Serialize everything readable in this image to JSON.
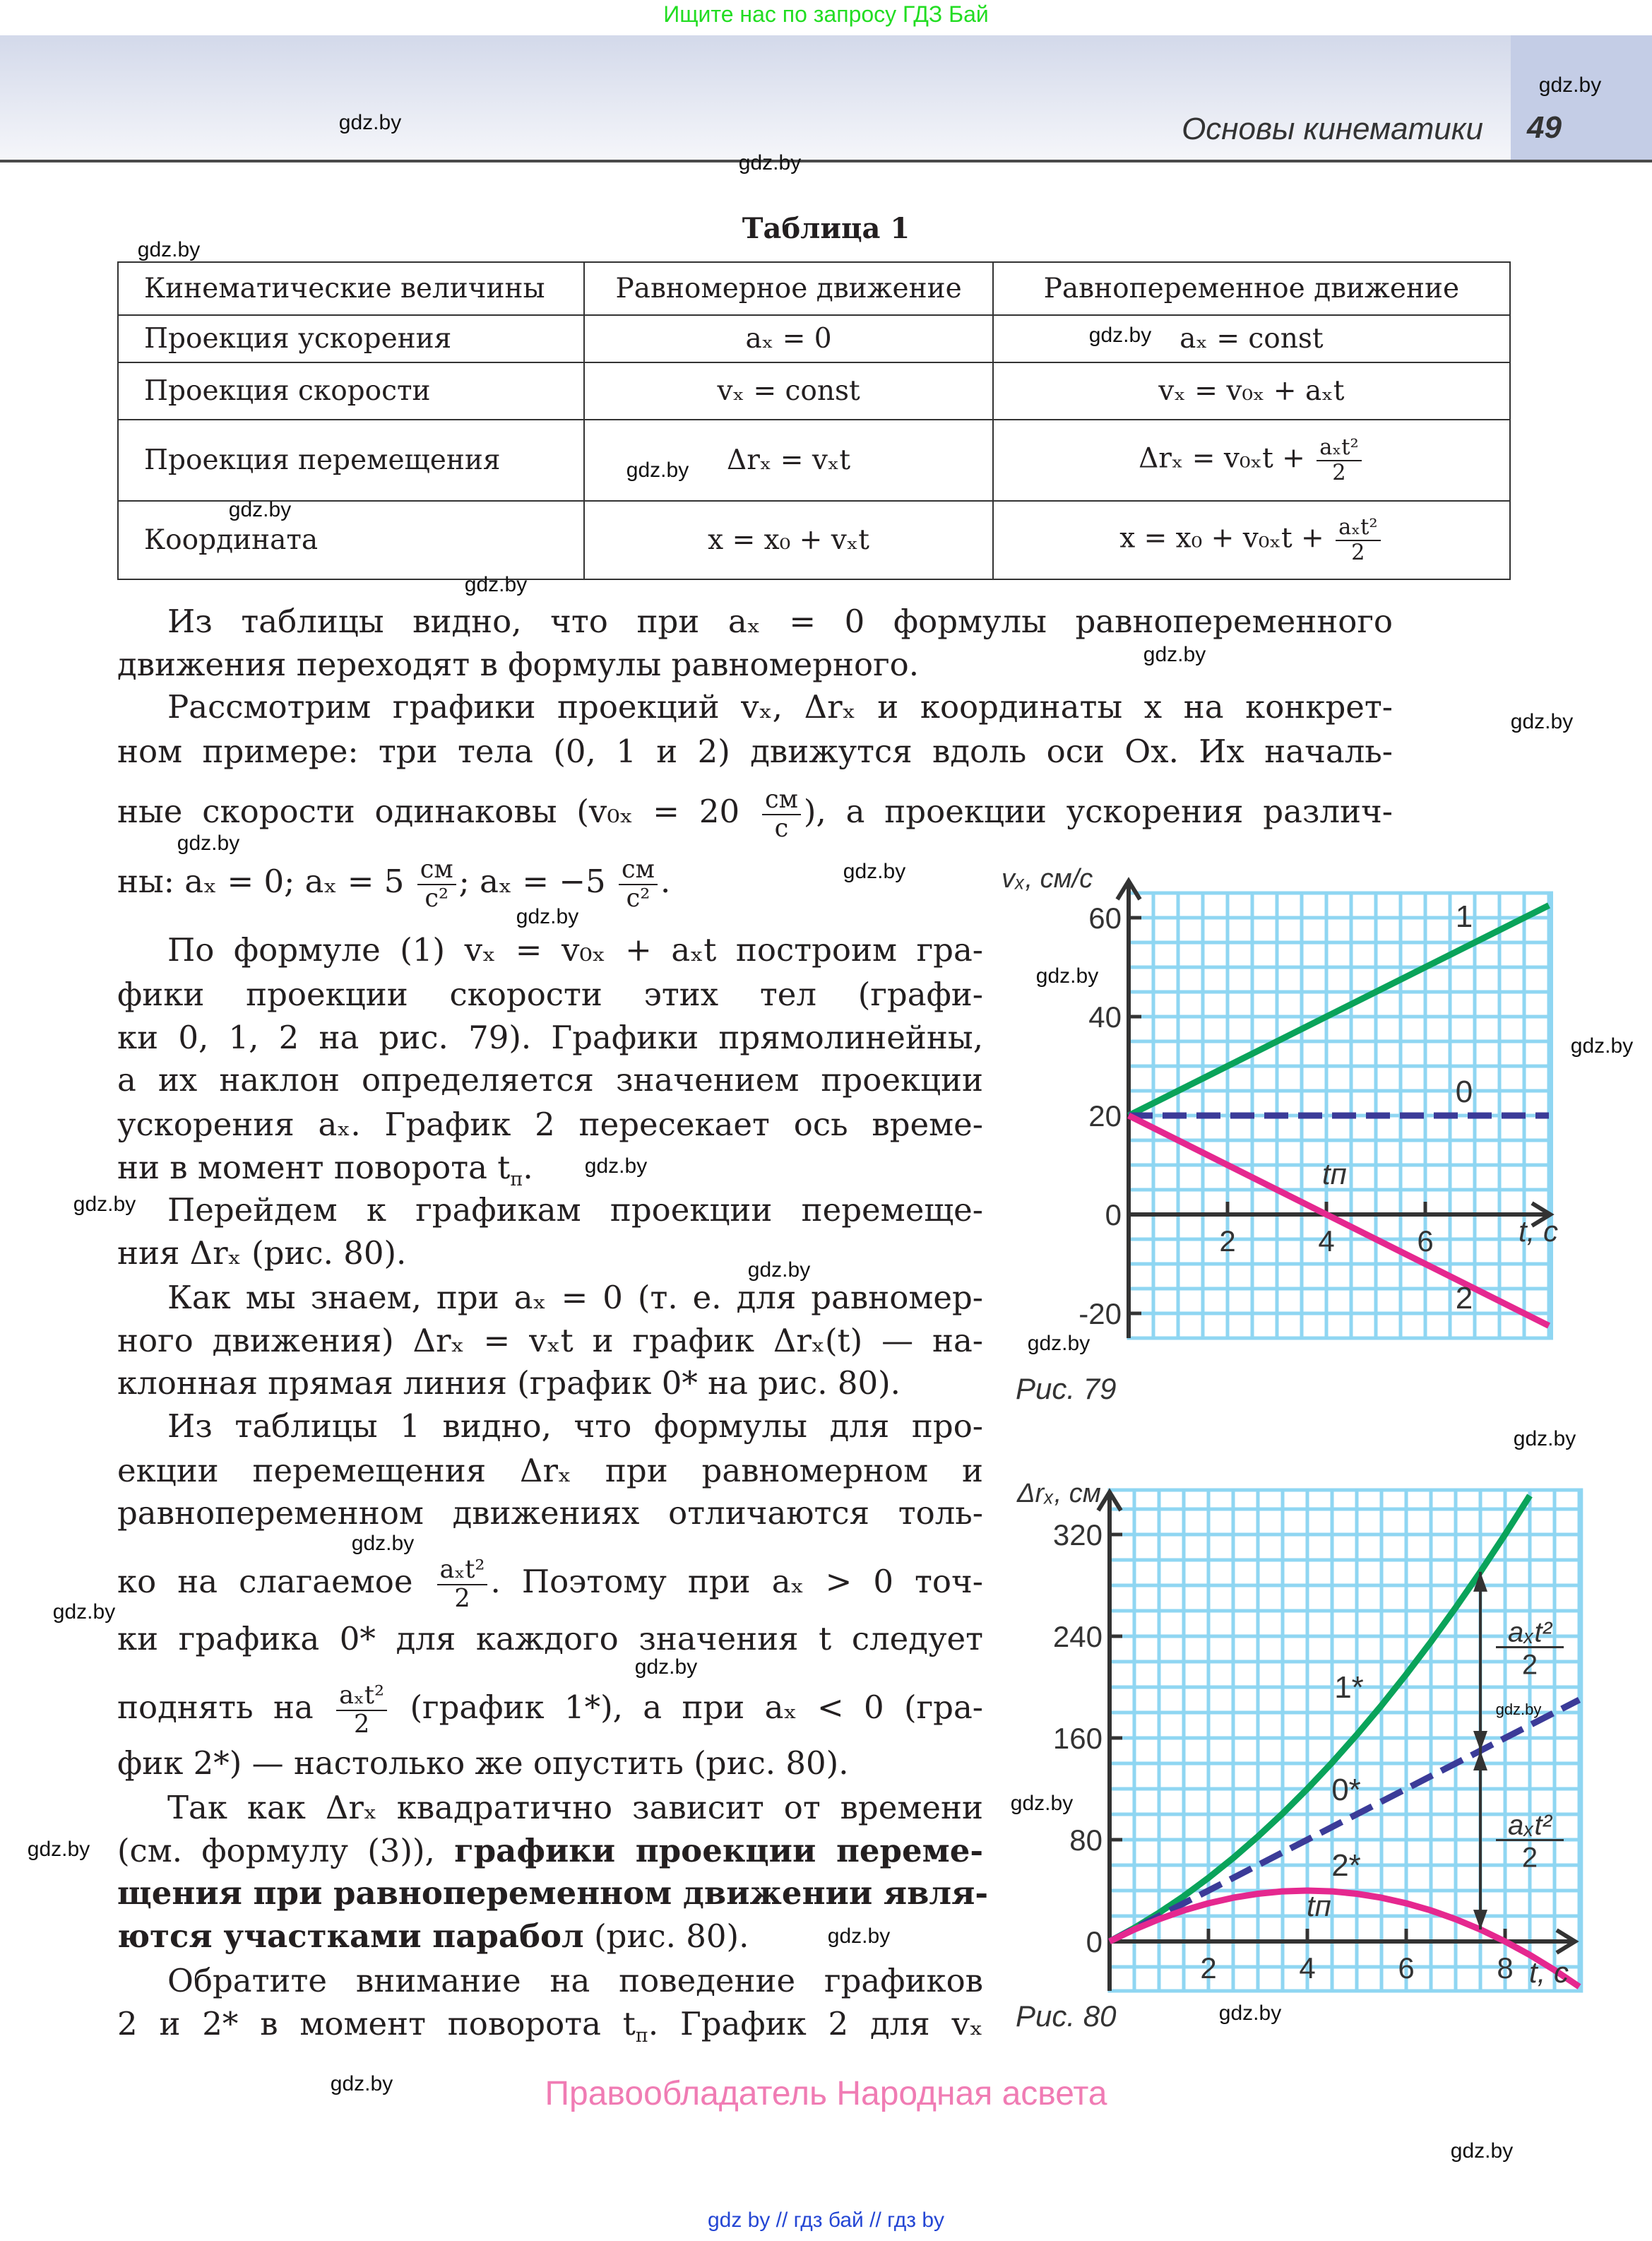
{
  "top_note": "Ищите нас по запросу ГДЗ Бай",
  "header": {
    "chapter": "Основы кинематики",
    "page_number": "49"
  },
  "watermark": "gdz.by",
  "table": {
    "caption": "Таблица 1",
    "headers": [
      "Кинематические величины",
      "Равномерное движение",
      "Равнопеременное движение"
    ],
    "rows": [
      {
        "name": "Проекция ускорения",
        "uniform": [
          "aₓ = 0"
        ],
        "variable": [
          "aₓ = const"
        ]
      },
      {
        "name": "Проекция скорости",
        "uniform": [
          "vₓ = const"
        ],
        "variable": [
          "vₓ = v₀ₓ + aₓt"
        ]
      },
      {
        "name": "Проекция перемещения",
        "uniform": [
          "Δrₓ = vₓt"
        ],
        "variable": [
          "Δrₓ = v₀ₓt + ",
          {
            "f": [
              "aₓt²",
              "2"
            ]
          }
        ]
      },
      {
        "name": "Координата",
        "uniform": [
          "x = x₀ + vₓt"
        ],
        "variable": [
          "x = x₀ + v₀ₓt + ",
          {
            "f": [
              "aₓt²",
              "2"
            ]
          }
        ]
      }
    ]
  },
  "text": {
    "lines": [
      [
        "Из таблицы видно, что при aₓ = 0 формулы равнопеременного"
      ],
      [
        "движения переходят в формулы равномерного."
      ],
      [
        "Рассмотрим графики проекций vₓ, Δrₓ и координаты x на конкрет-"
      ],
      [
        "ном примере: три тела (0, 1 и 2) движутся вдоль оси Ox. Их началь-"
      ],
      [
        "ные скорости одинаковы (v₀ₓ = 20 ",
        {
          "f": [
            "см",
            "с"
          ]
        },
        "), а проекции ускорения различ-"
      ],
      [
        "ны: aₓ = 0; aₓ = 5 ",
        {
          "f": [
            "см",
            "с²"
          ]
        },
        "; aₓ = −5 ",
        {
          "f": [
            "см",
            "с²"
          ]
        },
        "."
      ],
      [
        "По формуле (1) vₓ = v₀ₓ + aₓt построим гра-"
      ],
      [
        "фики проекции скорости этих тел (графи-"
      ],
      [
        "ки 0, 1, 2 на рис. 79). Графики прямолинейны,"
      ],
      [
        "а их наклон определяется значением проекции"
      ],
      [
        "ускорения aₓ. График 2 пересекает ось време-"
      ],
      [
        "ни в момент поворота ",
        {
          "sub": [
            "t",
            "п"
          ]
        },
        "."
      ],
      [
        "Перейдем к графикам проекции перемеще-"
      ],
      [
        "ния Δrₓ (рис. 80)."
      ],
      [
        "Как мы знаем, при aₓ = 0 (т. е. для равномер-"
      ],
      [
        "ного движения) Δrₓ = vₓt и график Δrₓ(t) — на-"
      ],
      [
        "клонная прямая линия (график 0* на рис. 80)."
      ],
      [
        "Из таблицы 1 видно, что формулы для про-"
      ],
      [
        "екции перемещения Δrₓ при равномерном и"
      ],
      [
        "равнопеременном движениях отличаются толь-"
      ],
      [
        "ко на слагаемое ",
        {
          "f": [
            "aₓt²",
            "2"
          ]
        },
        ". Поэтому при aₓ > 0 точ-"
      ],
      [
        "ки графика 0* для каждого значения t следует"
      ],
      [
        "поднять на ",
        {
          "f": [
            "aₓt²",
            "2"
          ]
        },
        " (график 1*), а при aₓ < 0 (гра-"
      ],
      [
        "фик 2*) — настолько же опустить (рис. 80)."
      ],
      [
        "Так как Δrₓ квадратично зависит от времени"
      ],
      [
        "(см. формулу (3)), ",
        {
          "b": "графики проекции переме-"
        }
      ],
      [
        {
          "b": "щения при равнопеременном движении явля-"
        }
      ],
      [
        {
          "b": "ются участками парабол"
        },
        " (рис. 80)."
      ],
      [
        "Обратите внимание на поведение графиков"
      ],
      [
        "2 и 2* в момент поворота ",
        {
          "sub": [
            "t",
            "п"
          ]
        },
        ". График 2 для vₓ"
      ]
    ]
  },
  "chart_data": [
    {
      "type": "line",
      "caption": "Рис. 79",
      "ylabel": "vₓ, см/с",
      "xlabel": "t, c",
      "xlim": [
        0,
        8.5
      ],
      "ylim": [
        -25,
        65
      ],
      "x_ticks": [
        2,
        4,
        6
      ],
      "y_ticks": [
        60,
        40,
        20,
        0,
        -20
      ],
      "grid": true,
      "annotation": "tп",
      "series": [
        {
          "name": "1",
          "x": [
            0,
            8.5
          ],
          "y": [
            20,
            62.5
          ],
          "color": "#0aa35a",
          "dash": false
        },
        {
          "name": "0",
          "x": [
            0,
            8.5
          ],
          "y": [
            20,
            20
          ],
          "color": "#3b3b98",
          "dash": true
        },
        {
          "name": "2",
          "x": [
            0,
            8.5
          ],
          "y": [
            20,
            -22.5
          ],
          "color": "#e5288f",
          "dash": false
        }
      ]
    },
    {
      "type": "line",
      "caption": "Рис. 80",
      "ylabel": "Δrₓ, см",
      "xlabel": "t, c",
      "xlim": [
        0,
        9.5
      ],
      "ylim": [
        -40,
        355
      ],
      "x_ticks": [
        2,
        4,
        6,
        8
      ],
      "y_ticks": [
        320,
        240,
        160,
        80,
        0
      ],
      "grid": true,
      "annotation": "tп",
      "offset_label": [
        "aₓt²",
        "2"
      ],
      "series": [
        {
          "name": "1*",
          "x": [
            0,
            0.5,
            1,
            1.5,
            2,
            2.5,
            3,
            3.5,
            4,
            4.5,
            5,
            5.5,
            6,
            6.5,
            7,
            7.5,
            8,
            8.5
          ],
          "y": [
            0,
            10.6,
            22.5,
            35.6,
            50,
            65.6,
            82.5,
            100.6,
            120,
            140.6,
            162.5,
            185.6,
            210,
            235.6,
            262.5,
            290.6,
            320,
            350.6
          ],
          "color": "#0aa35a",
          "dash": false
        },
        {
          "name": "0*",
          "x": [
            0,
            9.5
          ],
          "y": [
            0,
            190
          ],
          "color": "#3b3b98",
          "dash": true
        },
        {
          "name": "2*",
          "x": [
            0,
            0.5,
            1,
            1.5,
            2,
            2.5,
            3,
            3.5,
            4,
            4.5,
            5,
            5.5,
            6,
            6.5,
            7,
            7.5,
            8,
            8.5,
            9,
            9.5
          ],
          "y": [
            0,
            9.4,
            17.5,
            24.4,
            30,
            34.4,
            37.5,
            39.4,
            40,
            39.4,
            37.5,
            34.4,
            30,
            24.4,
            17.5,
            9.4,
            0,
            -10.6,
            -22.5,
            -35.6
          ],
          "color": "#e5288f",
          "dash": false
        }
      ]
    }
  ],
  "footer": {
    "rights": "Правообладатель Народная асвета",
    "links": "gdz by  //  гдз бай  //  гдз by"
  }
}
